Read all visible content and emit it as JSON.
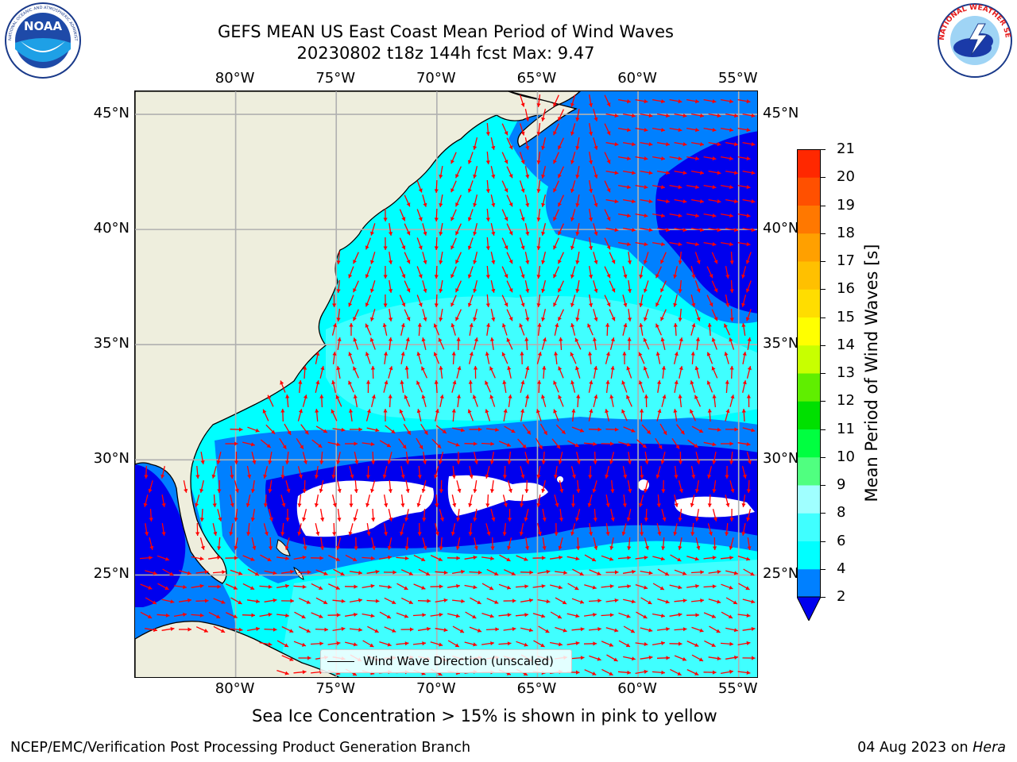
{
  "header": {
    "title_line1": "GEFS MEAN US East Coast Mean Period of Wind Waves",
    "title_line2": "20230802 t18z 144h fcst   Max: 9.47"
  },
  "logos": {
    "noaa_text": "NOAA",
    "noaa_ring_text": "NATIONAL OCEANIC AND ATMOSPHERIC ADMINISTRATION · U.S. DEPARTMENT OF COMMERCE",
    "nws_ring_text": "NATIONAL WEATHER SERVICE"
  },
  "map": {
    "longitude_labels": [
      "80°W",
      "75°W",
      "70°W",
      "65°W",
      "60°W",
      "55°W"
    ],
    "latitude_labels": [
      "45°N",
      "40°N",
      "35°N",
      "30°N",
      "25°N"
    ],
    "legend_label": "Wind Wave Direction (unscaled)",
    "colors": {
      "land": "#eeeedd",
      "coastline": "#000000",
      "gridline": "#b0b0b0",
      "arrows": "#ff0000"
    }
  },
  "colorbar": {
    "label": "Mean Period of Wind Waves [s]",
    "tick_labels": [
      "21",
      "20",
      "19",
      "18",
      "17",
      "16",
      "15",
      "14",
      "13",
      "12",
      "11",
      "10",
      "9",
      "8",
      "6",
      "4",
      "2"
    ],
    "colors": [
      "#0000ee",
      "#0080ff",
      "#00ffff",
      "#40ffff",
      "#a0ffff",
      "#50ff80",
      "#00ff40",
      "#00e000",
      "#60ee00",
      "#c8ff00",
      "#ffff00",
      "#ffdd00",
      "#ffc000",
      "#ffa000",
      "#ff7800",
      "#ff5000",
      "#ff2800",
      "#ff0000"
    ],
    "extend": "min"
  },
  "chart_data": {
    "type": "heatmap",
    "title": "GEFS MEAN US East Coast Mean Period of Wind Waves",
    "subtitle": "20230802 t18z 144h fcst   Max: 9.47",
    "xlabel": "",
    "ylabel": "",
    "xlim": [
      -85,
      -54
    ],
    "ylim": [
      20.5,
      46
    ],
    "x_ticks": [
      "80°W",
      "75°W",
      "70°W",
      "65°W",
      "60°W",
      "55°W"
    ],
    "y_ticks": [
      "45°N",
      "40°N",
      "35°N",
      "30°N",
      "25°N"
    ],
    "colorbar_label": "Mean Period of Wind Waves [s]",
    "colorbar_levels": [
      2,
      4,
      6,
      8,
      9,
      10,
      11,
      12,
      13,
      14,
      15,
      16,
      17,
      18,
      19,
      20,
      21
    ],
    "max_value": 9.47,
    "grid": true,
    "legend": "bottom-center"
  },
  "notes": {
    "sea_ice": "Sea Ice Concentration > 15% is shown in pink to yellow"
  },
  "footer": {
    "left": "NCEP/EMC/Verification Post Processing Product Generation Branch",
    "date": "04 Aug 2023 on",
    "machine": "Hera"
  }
}
